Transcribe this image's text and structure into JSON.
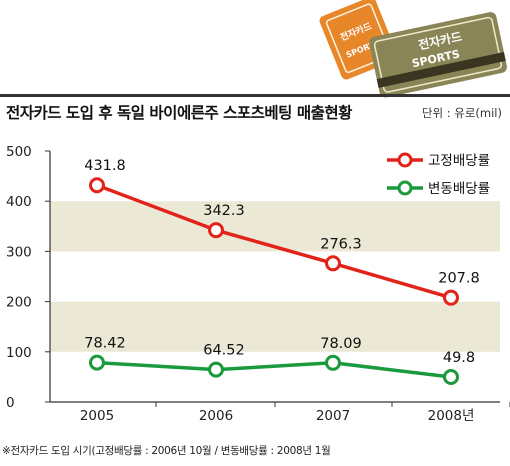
{
  "header": {
    "title": "전자카드 도입 후 독일 바이에른주 스포츠베팅 매출현황",
    "unit": "단위 : 유로(mil)"
  },
  "cards": {
    "orange": {
      "line1": "전자카드",
      "line2": "SPORTS",
      "color": "#e8862a"
    },
    "olive": {
      "line1": "전자카드",
      "line2": "SPORTS",
      "color": "#8a8556"
    }
  },
  "chart_data": {
    "type": "line",
    "x": [
      "2005",
      "2006",
      "2007",
      "2008년"
    ],
    "yticks": [
      "0",
      "100",
      "200",
      "300",
      "400",
      "500"
    ],
    "ylim": [
      0,
      500
    ],
    "grid": "alternating bands",
    "legend_position": "top-right",
    "series": [
      {
        "name": "고정배당률",
        "values": [
          431.8,
          342.3,
          276.3,
          207.8
        ],
        "labels": [
          "431.8",
          "342.3",
          "276.3",
          "207.8"
        ],
        "color": "#e2231a"
      },
      {
        "name": "변동배당률",
        "values": [
          78.42,
          64.52,
          78.09,
          49.8
        ],
        "labels": [
          "78.42",
          "64.52",
          "78.09",
          "49.8"
        ],
        "color": "#1a9a3c"
      }
    ]
  },
  "footnote": "※전자카드 도입 시기(고정배당률 : 2006년 10월 / 변동배당률 : 2008년 1월"
}
